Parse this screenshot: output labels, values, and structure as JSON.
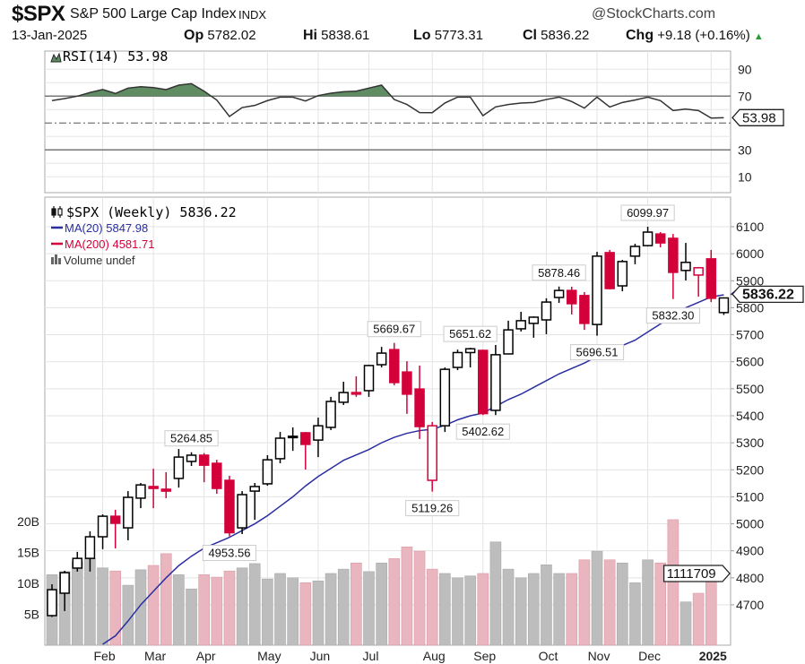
{
  "header": {
    "symbol": "$SPX",
    "name": "S&P 500 Large Cap Index",
    "exchange": "INDX",
    "brand": "@StockCharts.com",
    "date": "13-Jan-2025",
    "op_label": "Op",
    "op": "5782.02",
    "hi_label": "Hi",
    "hi": "5838.61",
    "lo_label": "Lo",
    "lo": "5773.31",
    "cl_label": "Cl",
    "cl": "5836.22",
    "chg_label": "Chg",
    "chg": "+9.18 (+0.16%)",
    "up_arrow": "▲"
  },
  "colors": {
    "up": "#000000",
    "down": "#d4003a",
    "ma20": "#2a2ea0",
    "ma200": "#d4003a",
    "rsi_fill": "#5f8c63",
    "vol_up": "#bdbdbd",
    "vol_down": "#e9b5bf"
  },
  "chart_data": [
    {
      "type": "line",
      "title": "RSI(14) 53.98",
      "legend": "RSI(14) 53.98",
      "ylim": [
        0,
        100
      ],
      "yticks": [
        "90",
        "70",
        "30",
        "10"
      ],
      "levels": {
        "overbought": 70,
        "oversold": 30,
        "mid": 50
      },
      "last_value_tag": "53.98",
      "values": [
        66.7,
        68.2,
        70,
        72.7,
        74.9,
        72,
        76,
        77,
        76.4,
        74.9,
        78.2,
        79.3,
        73.7,
        67.1,
        54.9,
        61.5,
        63.1,
        66.7,
        69.3,
        69.3,
        66.4,
        70.4,
        72.2,
        73.3,
        73.7,
        76,
        78.2,
        67.5,
        63.8,
        57.8,
        57.7,
        64.9,
        69.3,
        69.3,
        55.5,
        62,
        63.8,
        64.9,
        65.3,
        67.5,
        69.3,
        66,
        61.1,
        69.3,
        61.9,
        65.3,
        67.1,
        69.3,
        66.7,
        59.3,
        60.4,
        59.3,
        53.7,
        53.98
      ]
    },
    {
      "type": "candlestick",
      "title": "$SPX (Weekly) 5836.22",
      "legend": [
        {
          "label": "$SPX (Weekly) 5836.22"
        },
        {
          "label": "MA(20) 5847.98"
        },
        {
          "label": "MA(200) 4581.71"
        },
        {
          "label": "Volume undef"
        }
      ],
      "ylim": [
        4550,
        6160
      ],
      "yticks": [
        "6100",
        "6000",
        "5900",
        "5800",
        "5700",
        "5600",
        "5500",
        "5400",
        "5300",
        "5200",
        "5100",
        "5000",
        "4900",
        "4800",
        "4700"
      ],
      "xticks": [
        {
          "label": "Feb",
          "index": 4
        },
        {
          "label": "Mar",
          "index": 8
        },
        {
          "label": "Apr",
          "index": 12
        },
        {
          "label": "May",
          "index": 17
        },
        {
          "label": "Jun",
          "index": 21
        },
        {
          "label": "Jul",
          "index": 25
        },
        {
          "label": "Aug",
          "index": 30
        },
        {
          "label": "Sep",
          "index": 34
        },
        {
          "label": "Oct",
          "index": 39
        },
        {
          "label": "Nov",
          "index": 43
        },
        {
          "label": "Dec",
          "index": 47
        },
        {
          "label": "2025",
          "index": 52
        }
      ],
      "last_price_tag": "5836.22",
      "volume_tag": "1111709",
      "volume_ticks": [
        {
          "label": "20B",
          "value": 20
        },
        {
          "label": "15B",
          "value": 15
        },
        {
          "label": "10B",
          "value": 10
        },
        {
          "label": "5B",
          "value": 5
        }
      ],
      "annotations": [
        {
          "index": 11,
          "text": "5264.85",
          "pos": "above"
        },
        {
          "index": 14,
          "text": "4953.56",
          "pos": "below"
        },
        {
          "index": 27,
          "text": "5669.67",
          "pos": "above"
        },
        {
          "index": 30,
          "text": "5119.26",
          "pos": "below"
        },
        {
          "index": 33,
          "text": "5651.62",
          "pos": "above"
        },
        {
          "index": 34,
          "text": "5402.62",
          "pos": "below"
        },
        {
          "index": 40,
          "text": "5878.46",
          "pos": "above"
        },
        {
          "index": 43,
          "text": "5696.51",
          "pos": "below"
        },
        {
          "index": 47,
          "text": "6099.97",
          "pos": "above"
        },
        {
          "index": 49,
          "text": "5832.30",
          "pos": "below"
        }
      ],
      "ohlc_columns": [
        "open",
        "high",
        "low",
        "close",
        "style"
      ],
      "ohlc": [
        [
          4660,
          4776,
          4655,
          4756,
          "up"
        ],
        [
          4743,
          4826,
          4677,
          4819,
          "up"
        ],
        [
          4836,
          4896,
          4823,
          4872,
          "up"
        ],
        [
          4872,
          4972,
          4823,
          4952,
          "up"
        ],
        [
          4952,
          5035,
          4906,
          5028,
          "up"
        ],
        [
          5028,
          5052,
          4909,
          5002,
          "down"
        ],
        [
          4985,
          5121,
          4939,
          5098,
          "up"
        ],
        [
          5095,
          5151,
          5058,
          5144,
          "up"
        ],
        [
          5138,
          5204,
          5058,
          5131,
          "down"
        ],
        [
          5128,
          5191,
          5095,
          5121,
          "down"
        ],
        [
          5168,
          5277,
          5134,
          5247,
          "up"
        ],
        [
          5231,
          5264.85,
          5214,
          5254,
          "up"
        ],
        [
          5254,
          5262,
          5154,
          5217,
          "down"
        ],
        [
          5224,
          5237,
          5111,
          5131,
          "down"
        ],
        [
          5161,
          5178,
          4953.56,
          4967,
          "down"
        ],
        [
          4985,
          5121,
          4962,
          5108,
          "up"
        ],
        [
          5121,
          5151,
          5015,
          5138,
          "up"
        ],
        [
          5148,
          5254,
          5141,
          5237,
          "up"
        ],
        [
          5241,
          5340,
          5224,
          5317,
          "up"
        ],
        [
          5320,
          5357,
          5270,
          5324,
          "up"
        ],
        [
          5337,
          5340,
          5201,
          5294,
          "down"
        ],
        [
          5310,
          5393,
          5247,
          5363,
          "up"
        ],
        [
          5357,
          5470,
          5347,
          5453,
          "up"
        ],
        [
          5450,
          5526,
          5440,
          5486,
          "up"
        ],
        [
          5486,
          5546,
          5470,
          5480,
          "down"
        ],
        [
          5493,
          5589,
          5470,
          5586,
          "up"
        ],
        [
          5589,
          5655,
          5579,
          5632,
          "up"
        ],
        [
          5645,
          5669.67,
          5513,
          5523,
          "down"
        ],
        [
          5562,
          5602,
          5407,
          5480,
          "down"
        ],
        [
          5499,
          5586,
          5314,
          5360,
          "down"
        ],
        [
          5161,
          5377,
          5119.26,
          5363,
          "hollowred"
        ],
        [
          5363,
          5579,
          5340,
          5572,
          "up"
        ],
        [
          5579,
          5645,
          5569,
          5634,
          "up"
        ],
        [
          5634,
          5651.62,
          5579,
          5648,
          "up"
        ],
        [
          5642,
          5645,
          5402.62,
          5408,
          "down"
        ],
        [
          5420,
          5662,
          5402.62,
          5626,
          "up"
        ],
        [
          5629,
          5752,
          5629,
          5718,
          "up"
        ],
        [
          5722,
          5785,
          5712,
          5752,
          "up"
        ],
        [
          5742,
          5768,
          5689,
          5765,
          "up"
        ],
        [
          5755,
          5835,
          5702,
          5821,
          "up"
        ],
        [
          5838,
          5878.46,
          5818,
          5864,
          "up"
        ],
        [
          5864,
          5878,
          5775,
          5815,
          "down"
        ],
        [
          5845,
          5858,
          5718,
          5742,
          "down"
        ],
        [
          5738,
          6007,
          5696.51,
          5991,
          "up"
        ],
        [
          6004,
          6014,
          5868,
          5871,
          "down"
        ],
        [
          5881,
          5977,
          5861,
          5971,
          "up"
        ],
        [
          5991,
          6037,
          5961,
          6027,
          "up"
        ],
        [
          6030,
          6099.97,
          6027,
          6080,
          "up"
        ],
        [
          6073,
          6080,
          6024,
          6040,
          "down"
        ],
        [
          6057,
          6073,
          5832.3,
          5931,
          "down"
        ],
        [
          5938,
          6040,
          5901,
          5968,
          "up"
        ],
        [
          5921,
          5951,
          5841,
          5948,
          "hollowred"
        ],
        [
          5981,
          6014,
          5821,
          5835,
          "down"
        ],
        [
          5782.02,
          5838.61,
          5773.31,
          5836.22,
          "up"
        ]
      ],
      "ma20": [
        null,
        null,
        null,
        null,
        4550,
        4585,
        4640,
        4700,
        4750,
        4800,
        4845,
        4880,
        4910,
        4930,
        4950,
        4975,
        5000,
        5030,
        5065,
        5100,
        5140,
        5175,
        5205,
        5235,
        5255,
        5275,
        5300,
        5320,
        5335,
        5345,
        5350,
        5365,
        5385,
        5400,
        5410,
        5435,
        5460,
        5480,
        5505,
        5530,
        5555,
        5575,
        5595,
        5620,
        5640,
        5660,
        5680,
        5710,
        5740,
        5770,
        5800,
        5820,
        5840,
        5848
      ],
      "volume_billions": [
        11.4,
        11.9,
        13.5,
        14,
        12.5,
        12,
        9.7,
        12.2,
        12.9,
        14.8,
        11.4,
        9.1,
        11.4,
        11,
        12,
        12.5,
        13.2,
        10.7,
        11.6,
        10.9,
        10.1,
        10.4,
        11.6,
        12.3,
        13.3,
        11.9,
        13.3,
        14,
        15.9,
        15.2,
        12.3,
        11.6,
        10.9,
        11.2,
        11.6,
        16.7,
        12.3,
        10.9,
        11.6,
        13,
        11.6,
        11.6,
        13.8,
        15.2,
        13.8,
        13.3,
        10.1,
        13.8,
        13.3,
        20.3,
        7,
        8.4,
        11.2,
        null
      ]
    }
  ]
}
